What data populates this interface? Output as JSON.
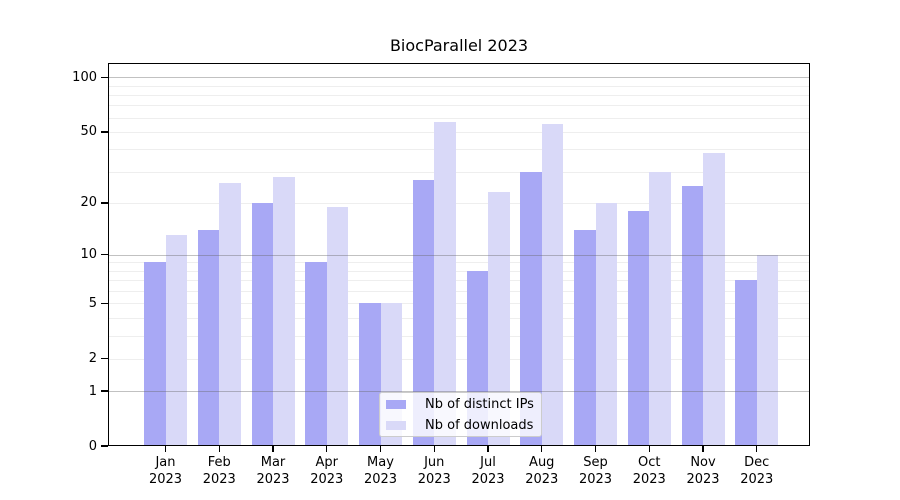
{
  "title": "BiocParallel 2023",
  "colors": {
    "ips_bar": "#a8a8f5",
    "downloads_bar": "#d9d9f8",
    "major_grid": "rgba(100,100,100,0.40)",
    "minor_grid": "rgba(120,120,120,0.13)",
    "axis": "#000000",
    "legend_border": "#cccccc",
    "legend_bg": "rgba(255,255,255,0.8)"
  },
  "legend": {
    "items": [
      {
        "label": "Nb of distinct IPs",
        "color_key": "ips_bar"
      },
      {
        "label": "Nb of downloads",
        "color_key": "downloads_bar"
      }
    ]
  },
  "chart_data": {
    "type": "bar",
    "title": "BiocParallel 2023",
    "categories": [
      "Jan 2023",
      "Feb 2023",
      "Mar 2023",
      "Apr 2023",
      "May 2023",
      "Jun 2023",
      "Jul 2023",
      "Aug 2023",
      "Sep 2023",
      "Oct 2023",
      "Nov 2023",
      "Dec 2023"
    ],
    "series": [
      {
        "name": "Nb of distinct IPs",
        "values": [
          9,
          14,
          20,
          9,
          5,
          27,
          8,
          30,
          14,
          18,
          25,
          7
        ]
      },
      {
        "name": "Nb of downloads",
        "values": [
          13,
          26,
          28,
          19,
          5,
          57,
          23,
          55,
          20,
          30,
          38,
          10
        ]
      }
    ],
    "xlabel": "",
    "ylabel": "",
    "y_scale": "log1p",
    "y_ticks": [
      0,
      1,
      2,
      5,
      10,
      20,
      50,
      100
    ],
    "minor_gridlines": [
      2,
      3,
      4,
      5,
      6,
      7,
      8,
      9,
      20,
      30,
      40,
      50,
      60,
      70,
      80,
      90
    ],
    "major_gridlines": [
      1,
      10,
      100
    ],
    "ylim": [
      0,
      120
    ],
    "grid": true,
    "legend_position": "lower center"
  }
}
